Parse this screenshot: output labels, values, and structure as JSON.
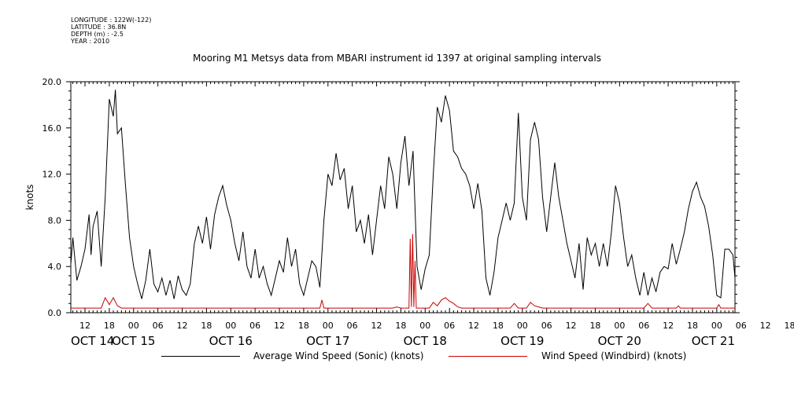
{
  "header": {
    "longitude": "LONGITUDE : 122W(-122)",
    "latitude": "LATITUDE : 36.8N",
    "depth": "DEPTH (m) : -2.5",
    "year": "YEAR : 2010"
  },
  "chart_data": {
    "type": "line",
    "title": "Mooring M1 Metsys data from MBARI instrument id 1397 at original sampling intervals",
    "ylabel": "knots",
    "xlabel": "",
    "ylim": [
      0,
      20
    ],
    "y_ticks": [
      "0.0",
      "4.0",
      "8.0",
      "12.0",
      "16.0",
      "20.0"
    ],
    "x_range_hours": [
      8.5,
      172.5
    ],
    "x_hour_ticks": [
      "12",
      "18",
      "00",
      "06",
      "12",
      "18",
      "00",
      "06",
      "12",
      "18",
      "00",
      "06",
      "12",
      "18",
      "00",
      "06",
      "12",
      "18",
      "00",
      "06",
      "12",
      "18",
      "00",
      "06",
      "12",
      "18",
      "00",
      "06",
      "12",
      "18",
      "00",
      "06"
    ],
    "x_date_labels": [
      "OCT 14",
      "OCT 15",
      "OCT 16",
      "OCT 17",
      "OCT 18",
      "OCT 19",
      "OCT 20",
      "OCT 21"
    ],
    "grid": false,
    "legend_position": "bottom",
    "series": [
      {
        "name": "Average Wind Speed (Sonic) (knots)",
        "color": "#000000",
        "points": [
          [
            8.5,
            4.2
          ],
          [
            9,
            6.5
          ],
          [
            10,
            2.8
          ],
          [
            11,
            4
          ],
          [
            12,
            5.5
          ],
          [
            13,
            8.5
          ],
          [
            13.5,
            5
          ],
          [
            14,
            7.5
          ],
          [
            15,
            8.8
          ],
          [
            16,
            4
          ],
          [
            17,
            10
          ],
          [
            18,
            18.5
          ],
          [
            19,
            17
          ],
          [
            19.5,
            19.3
          ],
          [
            20,
            15.5
          ],
          [
            21,
            16
          ],
          [
            22,
            11
          ],
          [
            23,
            6.5
          ],
          [
            24,
            4
          ],
          [
            25,
            2.5
          ],
          [
            26,
            1.2
          ],
          [
            27,
            2.8
          ],
          [
            28,
            5.5
          ],
          [
            29,
            2.5
          ],
          [
            30,
            1.8
          ],
          [
            31,
            3
          ],
          [
            32,
            1.5
          ],
          [
            33,
            2.8
          ],
          [
            34,
            1.2
          ],
          [
            35,
            3.2
          ],
          [
            36,
            2
          ],
          [
            37,
            1.5
          ],
          [
            38,
            2.5
          ],
          [
            39,
            6
          ],
          [
            40,
            7.5
          ],
          [
            41,
            6
          ],
          [
            42,
            8.3
          ],
          [
            43,
            5.5
          ],
          [
            44,
            8.5
          ],
          [
            45,
            10
          ],
          [
            46,
            11
          ],
          [
            47,
            9.3
          ],
          [
            48,
            8
          ],
          [
            49,
            6
          ],
          [
            50,
            4.5
          ],
          [
            51,
            7
          ],
          [
            52,
            4
          ],
          [
            53,
            3
          ],
          [
            54,
            5.5
          ],
          [
            55,
            3
          ],
          [
            56,
            4
          ],
          [
            57,
            2.5
          ],
          [
            58,
            1.5
          ],
          [
            59,
            3
          ],
          [
            60,
            4.5
          ],
          [
            61,
            3.5
          ],
          [
            62,
            6.5
          ],
          [
            63,
            4
          ],
          [
            64,
            5.5
          ],
          [
            65,
            2.5
          ],
          [
            66,
            1.5
          ],
          [
            67,
            3
          ],
          [
            68,
            4.5
          ],
          [
            69,
            4
          ],
          [
            70,
            2.2
          ],
          [
            71,
            8
          ],
          [
            72,
            12
          ],
          [
            73,
            11
          ],
          [
            74,
            13.8
          ],
          [
            75,
            11.5
          ],
          [
            76,
            12.5
          ],
          [
            77,
            9
          ],
          [
            78,
            11
          ],
          [
            79,
            7
          ],
          [
            80,
            8
          ],
          [
            81,
            6
          ],
          [
            82,
            8.5
          ],
          [
            83,
            5
          ],
          [
            84,
            8
          ],
          [
            85,
            11
          ],
          [
            86,
            9
          ],
          [
            87,
            13.5
          ],
          [
            88,
            12
          ],
          [
            89,
            9
          ],
          [
            90,
            13
          ],
          [
            91,
            15.3
          ],
          [
            92,
            11
          ],
          [
            93,
            14
          ],
          [
            94,
            4
          ],
          [
            95,
            2
          ],
          [
            96,
            3.8
          ],
          [
            97,
            5
          ],
          [
            98,
            12
          ],
          [
            99,
            17.8
          ],
          [
            100,
            16.5
          ],
          [
            101,
            18.8
          ],
          [
            102,
            17.5
          ],
          [
            103,
            14
          ],
          [
            104,
            13.5
          ],
          [
            105,
            12.5
          ],
          [
            106,
            12
          ],
          [
            107,
            11
          ],
          [
            108,
            9
          ],
          [
            109,
            11.2
          ],
          [
            110,
            8.8
          ],
          [
            111,
            3
          ],
          [
            112,
            1.5
          ],
          [
            113,
            3.5
          ],
          [
            114,
            6.5
          ],
          [
            115,
            8
          ],
          [
            116,
            9.5
          ],
          [
            117,
            8
          ],
          [
            118,
            9.5
          ],
          [
            119,
            17.3
          ],
          [
            120,
            10
          ],
          [
            121,
            8
          ],
          [
            122,
            15
          ],
          [
            123,
            16.5
          ],
          [
            124,
            15
          ],
          [
            125,
            10
          ],
          [
            126,
            7
          ],
          [
            127,
            10
          ],
          [
            128,
            13
          ],
          [
            129,
            10
          ],
          [
            130,
            8
          ],
          [
            131,
            6
          ],
          [
            132,
            4.5
          ],
          [
            133,
            3
          ],
          [
            134,
            6
          ],
          [
            135,
            2
          ],
          [
            136,
            6.5
          ],
          [
            137,
            5
          ],
          [
            138,
            6
          ],
          [
            139,
            4
          ],
          [
            140,
            6
          ],
          [
            141,
            4
          ],
          [
            142,
            7
          ],
          [
            143,
            11
          ],
          [
            144,
            9.5
          ],
          [
            145,
            6.5
          ],
          [
            146,
            4
          ],
          [
            147,
            5
          ],
          [
            148,
            3
          ],
          [
            149,
            1.5
          ],
          [
            150,
            3.5
          ],
          [
            151,
            1.5
          ],
          [
            152,
            3
          ],
          [
            153,
            1.8
          ],
          [
            154,
            3.5
          ],
          [
            155,
            4
          ],
          [
            156,
            3.8
          ],
          [
            157,
            6
          ],
          [
            158,
            4.2
          ],
          [
            159,
            5.5
          ],
          [
            160,
            7
          ],
          [
            161,
            9
          ],
          [
            162,
            10.5
          ],
          [
            163,
            11.3
          ],
          [
            164,
            10
          ],
          [
            165,
            9.2
          ],
          [
            166,
            7.5
          ],
          [
            167,
            5
          ],
          [
            168,
            1.5
          ],
          [
            169,
            1.3
          ],
          [
            170,
            5.5
          ],
          [
            171,
            5.5
          ],
          [
            172,
            5
          ],
          [
            172.5,
            3
          ]
        ]
      },
      {
        "name": "Wind Speed (Windbird) (knots)",
        "color": "#cc0000",
        "points": [
          [
            8.5,
            0.4
          ],
          [
            16,
            0.4
          ],
          [
            17,
            1.3
          ],
          [
            18,
            0.7
          ],
          [
            19,
            1.3
          ],
          [
            20,
            0.6
          ],
          [
            21,
            0.4
          ],
          [
            60,
            0.4
          ],
          [
            70,
            0.4
          ],
          [
            70.5,
            1.1
          ],
          [
            71,
            0.4
          ],
          [
            88,
            0.4
          ],
          [
            89,
            0.5
          ],
          [
            90,
            0.4
          ],
          [
            92,
            0.4
          ],
          [
            92.3,
            6.4
          ],
          [
            92.6,
            0.5
          ],
          [
            92.9,
            6.8
          ],
          [
            93.2,
            0.5
          ],
          [
            93.5,
            4.5
          ],
          [
            93.8,
            0.4
          ],
          [
            97,
            0.4
          ],
          [
            98,
            0.9
          ],
          [
            99,
            0.6
          ],
          [
            100,
            1.1
          ],
          [
            101,
            1.3
          ],
          [
            102,
            1
          ],
          [
            103,
            0.8
          ],
          [
            104,
            0.5
          ],
          [
            105,
            0.4
          ],
          [
            117,
            0.4
          ],
          [
            118,
            0.8
          ],
          [
            119,
            0.4
          ],
          [
            121,
            0.4
          ],
          [
            122,
            0.9
          ],
          [
            123,
            0.6
          ],
          [
            124,
            0.5
          ],
          [
            125,
            0.4
          ],
          [
            150,
            0.4
          ],
          [
            151,
            0.8
          ],
          [
            152,
            0.4
          ],
          [
            158,
            0.4
          ],
          [
            158.5,
            0.6
          ],
          [
            159,
            0.4
          ],
          [
            168,
            0.4
          ],
          [
            168.5,
            0.7
          ],
          [
            169,
            0.4
          ],
          [
            172.5,
            0.4
          ]
        ]
      }
    ]
  }
}
